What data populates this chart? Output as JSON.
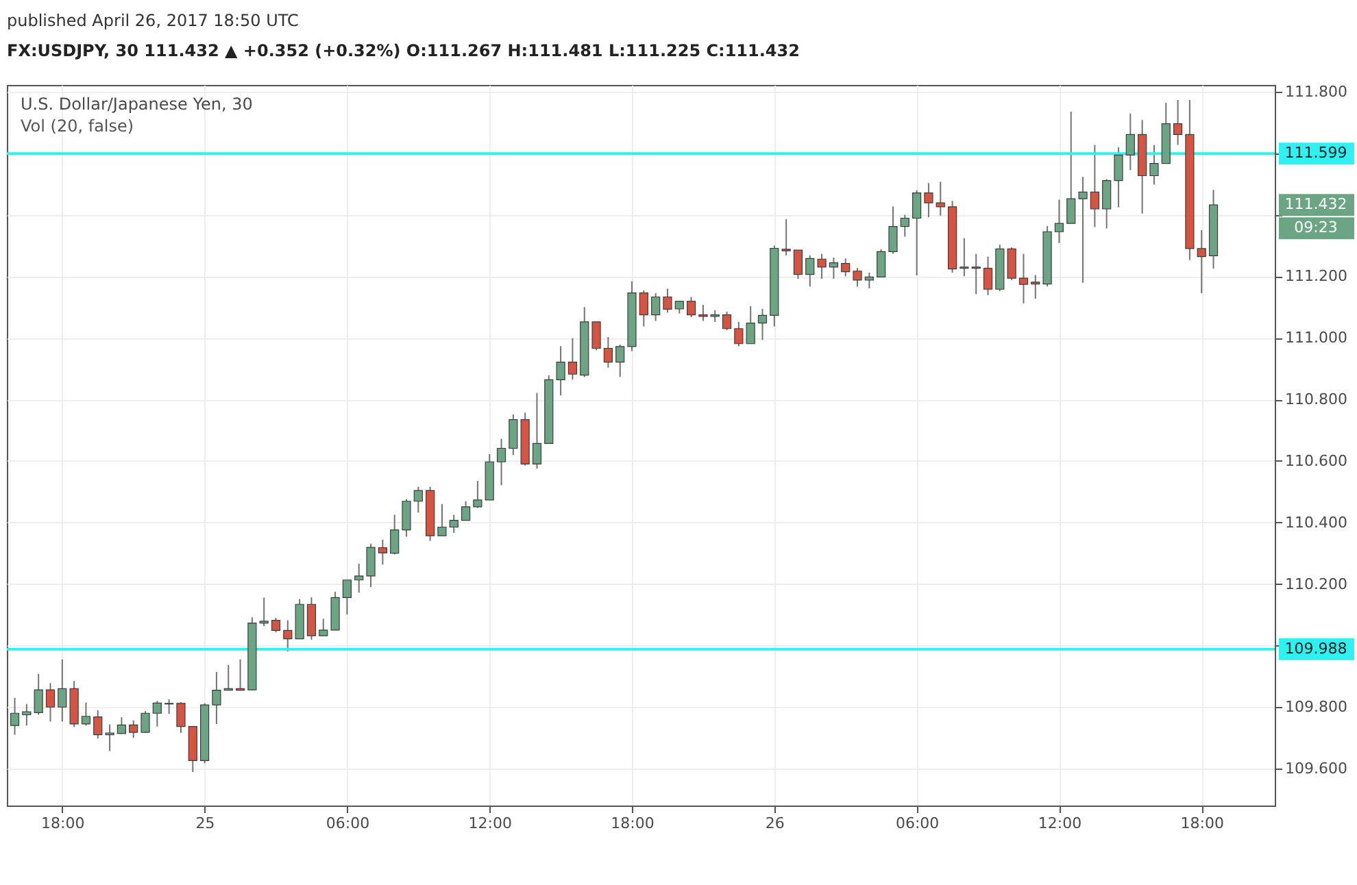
{
  "chart_data": {
    "type": "candlestick",
    "title": "U.S. Dollar/Japanese Yen, 30",
    "annotations": [
      "published April 26, 2017 18:50 UTC",
      "FX:USDJPY, 30  111.432 ▲ +0.352 (+0.32%)  O:111.267  H:111.481  L:111.225  C:111.432",
      "Vol (20, false)",
      "111.432",
      "09:23"
    ],
    "x": [
      "2017-04-24T16:00",
      "2017-04-24T16:30",
      "2017-04-24T17:00",
      "2017-04-24T17:30",
      "2017-04-24T18:00",
      "2017-04-24T18:30",
      "2017-04-24T19:00",
      "2017-04-24T19:30",
      "2017-04-24T20:00",
      "2017-04-24T20:30",
      "2017-04-24T21:00",
      "2017-04-24T21:30",
      "2017-04-24T22:00",
      "2017-04-24T22:30",
      "2017-04-24T23:00",
      "2017-04-24T23:30",
      "2017-04-25T00:00",
      "2017-04-25T00:30",
      "2017-04-25T01:00",
      "2017-04-25T01:30",
      "2017-04-25T02:00",
      "2017-04-25T02:30",
      "2017-04-25T03:00",
      "2017-04-25T03:30",
      "2017-04-25T04:00",
      "2017-04-25T04:30",
      "2017-04-25T05:00",
      "2017-04-25T05:30",
      "2017-04-25T06:00",
      "2017-04-25T06:30",
      "2017-04-25T07:00",
      "2017-04-25T07:30",
      "2017-04-25T08:00",
      "2017-04-25T08:30",
      "2017-04-25T09:00",
      "2017-04-25T09:30",
      "2017-04-25T10:00",
      "2017-04-25T10:30",
      "2017-04-25T11:00",
      "2017-04-25T11:30",
      "2017-04-25T12:00",
      "2017-04-25T12:30",
      "2017-04-25T13:00",
      "2017-04-25T13:30",
      "2017-04-25T14:00",
      "2017-04-25T14:30",
      "2017-04-25T15:00",
      "2017-04-25T15:30",
      "2017-04-25T16:00",
      "2017-04-25T16:30",
      "2017-04-25T17:00",
      "2017-04-25T17:30",
      "2017-04-25T18:00",
      "2017-04-25T18:30",
      "2017-04-25T19:00",
      "2017-04-25T19:30",
      "2017-04-25T20:00",
      "2017-04-25T20:30",
      "2017-04-25T21:00",
      "2017-04-25T21:30",
      "2017-04-25T22:00",
      "2017-04-25T22:30",
      "2017-04-25T23:00",
      "2017-04-25T23:30",
      "2017-04-26T00:00",
      "2017-04-26T00:30",
      "2017-04-26T01:00",
      "2017-04-26T01:30",
      "2017-04-26T02:00",
      "2017-04-26T02:30",
      "2017-04-26T03:00",
      "2017-04-26T03:30",
      "2017-04-26T04:00",
      "2017-04-26T04:30",
      "2017-04-26T05:00",
      "2017-04-26T05:30",
      "2017-04-26T06:00",
      "2017-04-26T06:30",
      "2017-04-26T07:00",
      "2017-04-26T07:30",
      "2017-04-26T08:00",
      "2017-04-26T08:30",
      "2017-04-26T09:00",
      "2017-04-26T09:30",
      "2017-04-26T10:00",
      "2017-04-26T10:30",
      "2017-04-26T11:00",
      "2017-04-26T11:30",
      "2017-04-26T12:00",
      "2017-04-26T12:30",
      "2017-04-26T13:00",
      "2017-04-26T13:30",
      "2017-04-26T14:00",
      "2017-04-26T14:30",
      "2017-04-26T15:00",
      "2017-04-26T15:30",
      "2017-04-26T16:00",
      "2017-04-26T16:30",
      "2017-04-26T17:00",
      "2017-04-26T17:30",
      "2017-04-26T18:00",
      "2017-04-26T18:30"
    ],
    "ohlc": [
      [
        109.74,
        109.83,
        109.71,
        109.78
      ],
      [
        109.775,
        109.81,
        109.74,
        109.785
      ],
      [
        109.782,
        109.908,
        109.775,
        109.856
      ],
      [
        109.856,
        109.878,
        109.753,
        109.8
      ],
      [
        109.8,
        109.955,
        109.753,
        109.86
      ],
      [
        109.86,
        109.885,
        109.735,
        109.745
      ],
      [
        109.745,
        109.815,
        109.74,
        109.77
      ],
      [
        109.768,
        109.79,
        109.698,
        109.71
      ],
      [
        109.71,
        109.744,
        109.657,
        109.716
      ],
      [
        109.714,
        109.767,
        109.713,
        109.742
      ],
      [
        109.742,
        109.757,
        109.7,
        109.718
      ],
      [
        109.718,
        109.787,
        109.716,
        109.78
      ],
      [
        109.78,
        109.82,
        109.737,
        109.813
      ],
      [
        109.81,
        109.825,
        109.778,
        109.812
      ],
      [
        109.812,
        109.816,
        109.716,
        109.737
      ],
      [
        109.737,
        109.737,
        109.589,
        109.626
      ],
      [
        109.626,
        109.812,
        109.617,
        109.807
      ],
      [
        109.807,
        109.914,
        109.745,
        109.855
      ],
      [
        109.855,
        109.937,
        109.855,
        109.86
      ],
      [
        109.86,
        109.955,
        109.855,
        109.855
      ],
      [
        109.856,
        110.092,
        109.855,
        110.073
      ],
      [
        110.073,
        110.156,
        110.063,
        110.079
      ],
      [
        110.082,
        110.09,
        110.043,
        110.049
      ],
      [
        110.049,
        110.082,
        109.981,
        110.022
      ],
      [
        110.022,
        110.151,
        110.022,
        110.134
      ],
      [
        110.134,
        110.157,
        110.019,
        110.032
      ],
      [
        110.032,
        110.087,
        110.032,
        110.05
      ],
      [
        110.05,
        110.175,
        110.05,
        110.156
      ],
      [
        110.156,
        110.213,
        110.101,
        110.213
      ],
      [
        110.213,
        110.266,
        110.172,
        110.226
      ],
      [
        110.226,
        110.331,
        110.19,
        110.319
      ],
      [
        110.318,
        110.344,
        110.263,
        110.301
      ],
      [
        110.3,
        110.425,
        110.296,
        110.376
      ],
      [
        110.376,
        110.475,
        110.354,
        110.469
      ],
      [
        110.469,
        110.516,
        110.432,
        110.504
      ],
      [
        110.504,
        110.516,
        110.34,
        110.357
      ],
      [
        110.357,
        110.46,
        110.357,
        110.385
      ],
      [
        110.385,
        110.425,
        110.366,
        110.407
      ],
      [
        110.407,
        110.469,
        110.407,
        110.451
      ],
      [
        110.451,
        110.535,
        110.447,
        110.473
      ],
      [
        110.473,
        110.622,
        110.473,
        110.597
      ],
      [
        110.597,
        110.672,
        110.521,
        110.641
      ],
      [
        110.641,
        110.751,
        110.619,
        110.734
      ],
      [
        110.734,
        110.757,
        110.585,
        110.59
      ],
      [
        110.59,
        110.821,
        110.575,
        110.657
      ],
      [
        110.657,
        110.878,
        110.657,
        110.864
      ],
      [
        110.864,
        110.973,
        110.813,
        110.921
      ],
      [
        110.921,
        110.999,
        110.864,
        110.882
      ],
      [
        110.879,
        111.1,
        110.873,
        111.052
      ],
      [
        111.052,
        111.052,
        110.96,
        110.966
      ],
      [
        110.966,
        111.003,
        110.903,
        110.921
      ],
      [
        110.921,
        110.978,
        110.873,
        110.972
      ],
      [
        110.972,
        111.184,
        110.957,
        111.146
      ],
      [
        111.146,
        111.154,
        111.037,
        111.075
      ],
      [
        111.075,
        111.145,
        111.055,
        111.133
      ],
      [
        111.133,
        111.16,
        111.082,
        111.093
      ],
      [
        111.094,
        111.119,
        111.079,
        111.119
      ],
      [
        111.119,
        111.133,
        111.067,
        111.075
      ],
      [
        111.075,
        111.107,
        111.055,
        111.07
      ],
      [
        111.07,
        111.09,
        111.052,
        111.075
      ],
      [
        111.075,
        111.085,
        111.025,
        111.03
      ],
      [
        111.03,
        111.052,
        110.973,
        110.981
      ],
      [
        110.981,
        111.103,
        110.981,
        111.048
      ],
      [
        111.048,
        111.094,
        110.993,
        111.073
      ],
      [
        111.073,
        111.3,
        111.037,
        111.291
      ],
      [
        111.288,
        111.386,
        111.268,
        111.283
      ],
      [
        111.285,
        111.285,
        111.192,
        111.206
      ],
      [
        111.206,
        111.268,
        111.167,
        111.258
      ],
      [
        111.256,
        111.273,
        111.192,
        111.23
      ],
      [
        111.23,
        111.261,
        111.192,
        111.244
      ],
      [
        111.242,
        111.258,
        111.2,
        111.215
      ],
      [
        111.217,
        111.227,
        111.167,
        111.188
      ],
      [
        111.188,
        111.212,
        111.161,
        111.198
      ],
      [
        111.198,
        111.288,
        111.198,
        111.28
      ],
      [
        111.28,
        111.427,
        111.273,
        111.362
      ],
      [
        111.362,
        111.4,
        111.329,
        111.389
      ],
      [
        111.389,
        111.48,
        111.203,
        111.471
      ],
      [
        111.471,
        111.503,
        111.392,
        111.439
      ],
      [
        111.439,
        111.507,
        111.397,
        111.426
      ],
      [
        111.426,
        111.445,
        111.212,
        111.224
      ],
      [
        111.226,
        111.324,
        111.2,
        111.23
      ],
      [
        111.23,
        111.273,
        111.142,
        111.226
      ],
      [
        111.226,
        111.264,
        111.139,
        111.158
      ],
      [
        111.158,
        111.303,
        111.152,
        111.289
      ],
      [
        111.289,
        111.294,
        111.188,
        111.194
      ],
      [
        111.194,
        111.273,
        111.112,
        111.174
      ],
      [
        111.181,
        111.204,
        111.127,
        111.175
      ],
      [
        111.175,
        111.363,
        111.167,
        111.345
      ],
      [
        111.345,
        111.449,
        111.308,
        111.372
      ],
      [
        111.372,
        111.735,
        111.372,
        111.452
      ],
      [
        111.452,
        111.523,
        111.179,
        111.474
      ],
      [
        111.474,
        111.627,
        111.36,
        111.419
      ],
      [
        111.419,
        111.516,
        111.356,
        111.511
      ],
      [
        111.511,
        111.619,
        111.424,
        111.594
      ],
      [
        111.594,
        111.729,
        111.545,
        111.661
      ],
      [
        111.661,
        111.708,
        111.404,
        111.527
      ],
      [
        111.527,
        111.627,
        111.498,
        111.567
      ],
      [
        111.567,
        111.764,
        111.567,
        111.696
      ],
      [
        111.696,
        111.773,
        111.627,
        111.661
      ],
      [
        111.661,
        111.773,
        111.253,
        111.29
      ],
      [
        111.29,
        111.35,
        111.145,
        111.264
      ],
      [
        111.267,
        111.481,
        111.225,
        111.432
      ]
    ],
    "colors": [
      "#6ba583",
      "#6ba583",
      "#6ba583",
      "#d75442",
      "#6ba583",
      "#d75442",
      "#6ba583",
      "#d75442",
      "#6ba583",
      "#6ba583",
      "#d75442",
      "#6ba583",
      "#6ba583",
      "#6ba583",
      "#d75442",
      "#d75442",
      "#6ba583",
      "#6ba583",
      "#6ba583",
      "#d75442",
      "#6ba583",
      "#6ba583",
      "#d75442",
      "#d75442",
      "#6ba583",
      "#d75442",
      "#6ba583",
      "#6ba583",
      "#6ba583",
      "#6ba583",
      "#6ba583",
      "#d75442",
      "#6ba583",
      "#6ba583",
      "#6ba583",
      "#d75442",
      "#6ba583",
      "#6ba583",
      "#6ba583",
      "#6ba583",
      "#6ba583",
      "#6ba583",
      "#6ba583",
      "#d75442",
      "#6ba583",
      "#6ba583",
      "#6ba583",
      "#d75442",
      "#6ba583",
      "#d75442",
      "#d75442",
      "#6ba583",
      "#6ba583",
      "#d75442",
      "#6ba583",
      "#d75442",
      "#6ba583",
      "#d75442",
      "#d75442",
      "#6ba583",
      "#d75442",
      "#d75442",
      "#6ba583",
      "#6ba583",
      "#6ba583",
      "#d75442",
      "#d75442",
      "#6ba583",
      "#d75442",
      "#6ba583",
      "#d75442",
      "#d75442",
      "#6ba583",
      "#6ba583",
      "#6ba583",
      "#6ba583",
      "#6ba583",
      "#d75442",
      "#d75442",
      "#d75442",
      "#6ba583",
      "#d75442",
      "#d75442",
      "#6ba583",
      "#d75442",
      "#d75442",
      "#d75442",
      "#6ba583",
      "#6ba583",
      "#6ba583",
      "#6ba583",
      "#d75442",
      "#6ba583",
      "#6ba583",
      "#6ba583",
      "#d75442",
      "#6ba583",
      "#6ba583",
      "#d75442",
      "#d75442",
      "#d75442",
      "#6ba583"
    ],
    "xlim": [
      "2017-04-24T15:40",
      "2017-04-26T21:05"
    ],
    "xticks": [
      {
        "value": "2017-04-24T18:00",
        "label": "18:00"
      },
      {
        "value": "2017-04-25T00:00",
        "label": "25"
      },
      {
        "value": "2017-04-25T06:00",
        "label": "06:00"
      },
      {
        "value": "2017-04-25T12:00",
        "label": "12:00"
      },
      {
        "value": "2017-04-25T18:00",
        "label": "18:00"
      },
      {
        "value": "2017-04-26T00:00",
        "label": "26"
      },
      {
        "value": "2017-04-26T06:00",
        "label": "06:00"
      },
      {
        "value": "2017-04-26T12:00",
        "label": "12:00"
      },
      {
        "value": "2017-04-26T18:00",
        "label": "18:00"
      }
    ],
    "ylim": [
      109.48,
      111.822
    ],
    "yticks": [
      {
        "value": 109.6,
        "label": "109.600"
      },
      {
        "value": 109.8,
        "label": "109.800"
      },
      {
        "value": 110.0,
        "label": null
      },
      {
        "value": 110.2,
        "label": "110.200"
      },
      {
        "value": 110.4,
        "label": "110.400"
      },
      {
        "value": 110.6,
        "label": "110.600"
      },
      {
        "value": 110.8,
        "label": "110.800"
      },
      {
        "value": 111.0,
        "label": "111.000"
      },
      {
        "value": 111.2,
        "label": "111.200"
      },
      {
        "value": 111.4,
        "label": null
      },
      {
        "value": 111.6,
        "label": null
      },
      {
        "value": 111.8,
        "label": "111.800"
      }
    ],
    "ref_lines": [
      {
        "axis": "y",
        "value": 111.599,
        "label": "111.599",
        "color": "#2ef2f2"
      },
      {
        "axis": "y",
        "value": 109.988,
        "label": "109.988",
        "color": "#2ef2f2"
      }
    ],
    "grid": true
  }
}
